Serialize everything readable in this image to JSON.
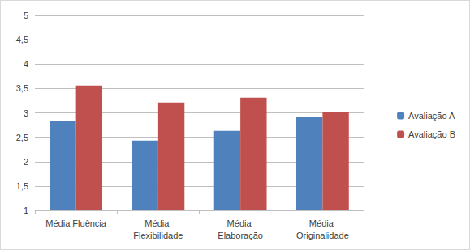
{
  "chart_data": {
    "type": "bar",
    "categories": [
      "Média Fluência",
      "Média Flexibilidade",
      "Média Elaboração",
      "Média Originalidade"
    ],
    "series": [
      {
        "name": "Avaliação A",
        "color": "#4f81bd",
        "values": [
          2.84,
          2.43,
          2.63,
          2.92
        ]
      },
      {
        "name": "Avaliação B",
        "color": "#c0504d",
        "values": [
          3.56,
          3.21,
          3.31,
          3.02
        ]
      }
    ],
    "ylim": [
      1,
      5
    ],
    "yticks": [
      1,
      {
        "value": 1.5,
        "label": "1,5"
      },
      2,
      {
        "value": 2.5,
        "label": "2,5"
      },
      3,
      {
        "value": 3.5,
        "label": "3,5"
      },
      4,
      {
        "value": 4.5,
        "label": "4,5"
      },
      5
    ],
    "grid": true,
    "legend": "right"
  }
}
